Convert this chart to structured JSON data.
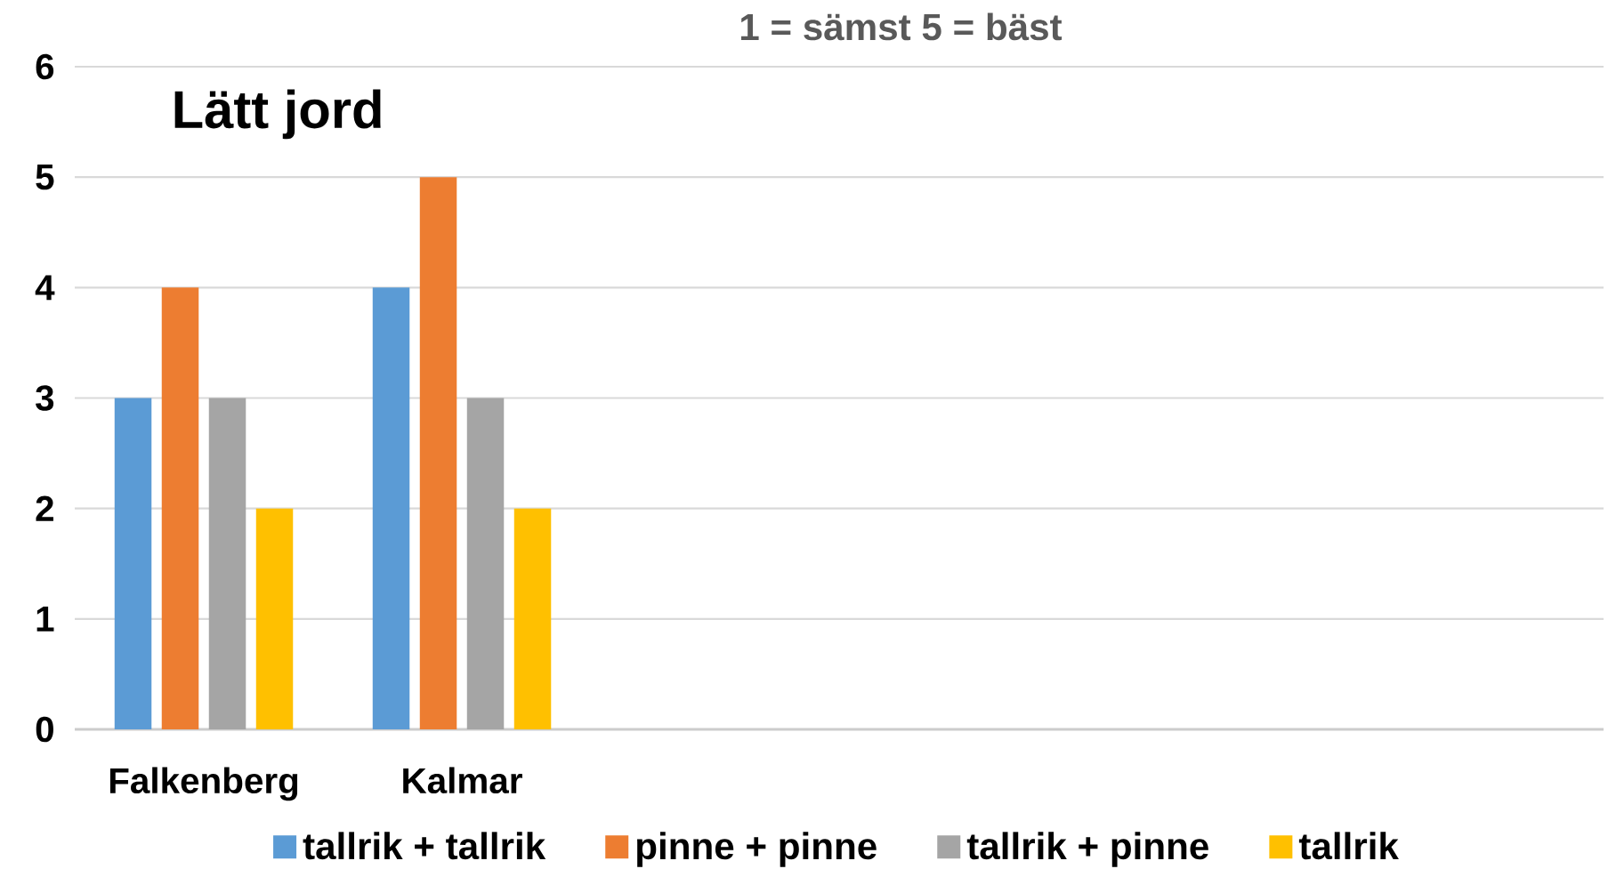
{
  "chart_data": {
    "type": "bar",
    "title": "Lätt jord",
    "subtitle": "1 = sämst 5 = bäst",
    "categories": [
      "Falkenberg",
      "Kalmar"
    ],
    "series": [
      {
        "name": "tallrik + tallrik",
        "color": "#5b9bd5",
        "values": [
          3,
          4
        ]
      },
      {
        "name": "pinne + pinne",
        "color": "#ed7d31",
        "values": [
          4,
          5
        ]
      },
      {
        "name": "tallrik + pinne",
        "color": "#a5a5a5",
        "values": [
          3,
          3
        ]
      },
      {
        "name": "tallrik",
        "color": "#ffc000",
        "values": [
          2,
          2
        ]
      }
    ],
    "ylim": [
      0,
      6
    ],
    "yticks": [
      0,
      1,
      2,
      3,
      4,
      5,
      6
    ],
    "grid": "y",
    "legend": "bottom"
  }
}
